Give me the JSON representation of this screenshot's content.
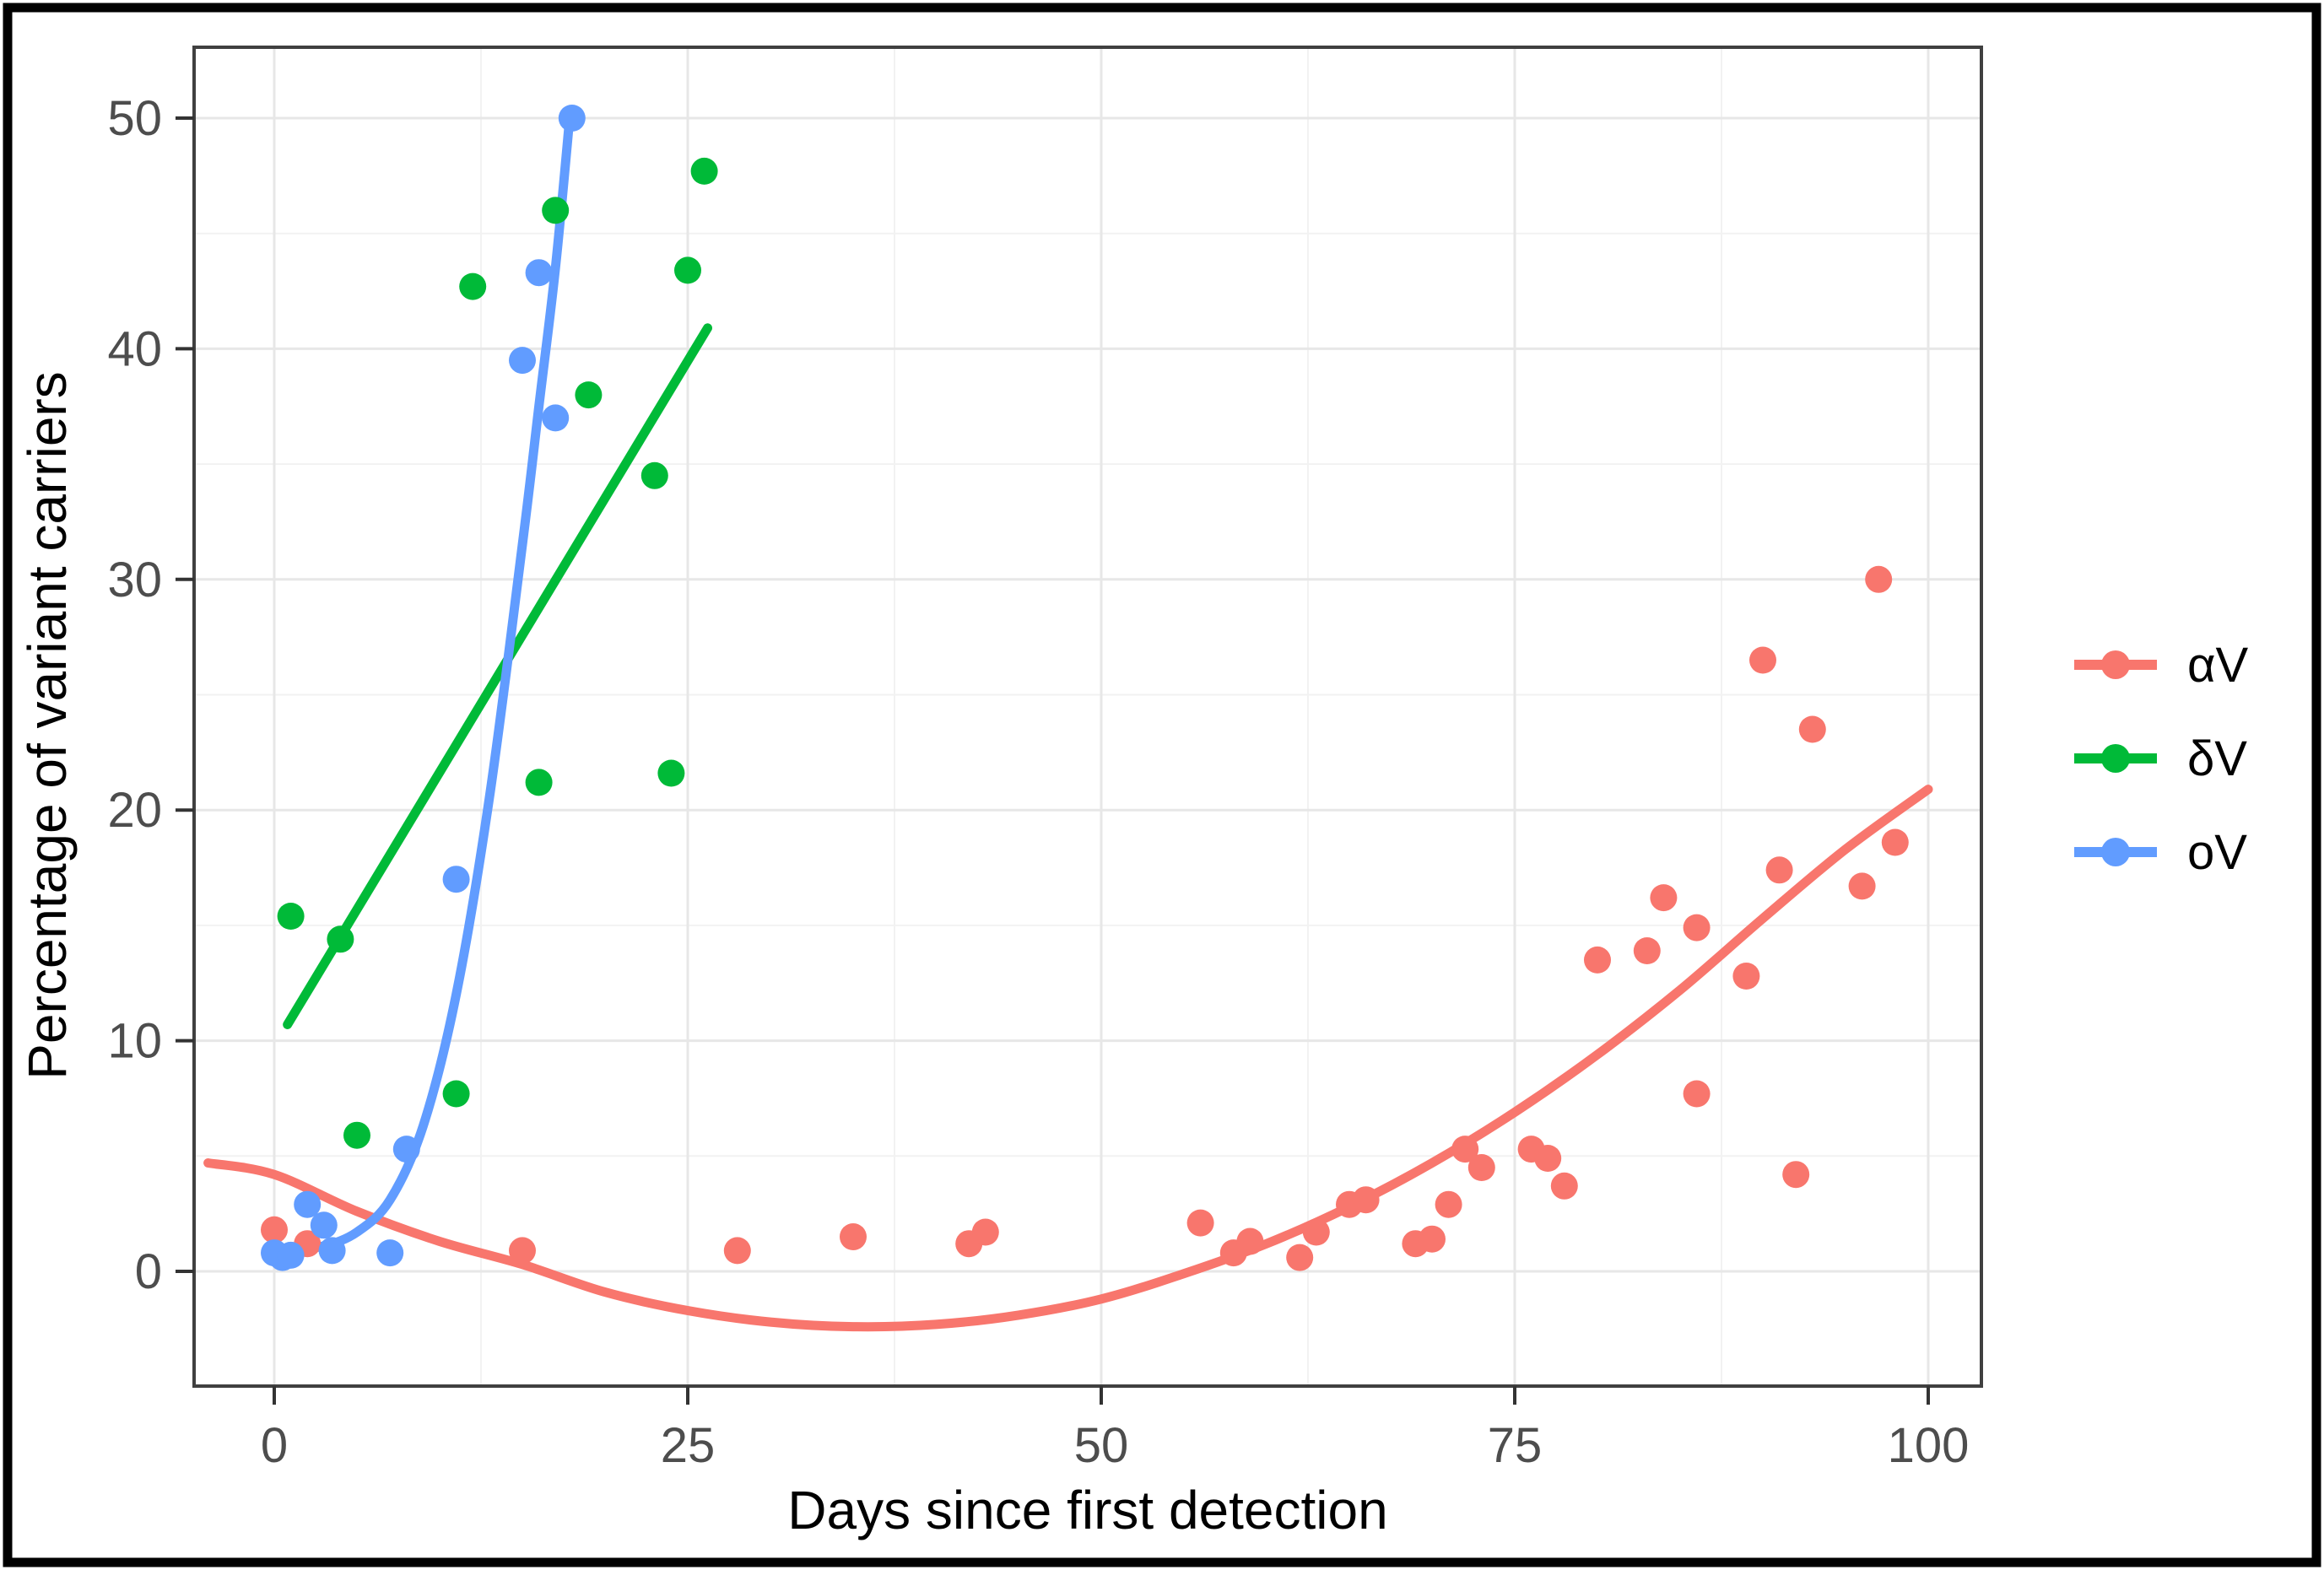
{
  "figure": {
    "description": "Scatter plot with fitted trend curves of variant carrier percentage over days since first detection",
    "background": "#ffffff",
    "frame_color": "#000000",
    "panel_border_color": "#404040",
    "grid_major_color": "#e7e7e7",
    "grid_minor_color": "#f2f2f2",
    "tick_color": "#333333",
    "tick_label_color": "#4d4d4d"
  },
  "legend": {
    "position": "right",
    "items": [
      {
        "label": "αV",
        "color": "#F8766D"
      },
      {
        "label": "δV",
        "color": "#00BA38"
      },
      {
        "label": "oV",
        "color": "#619CFF"
      }
    ]
  },
  "chart_data": {
    "type": "scatter",
    "title": "",
    "xlabel": "Days since first detection",
    "ylabel": "Percentage of variant carriers",
    "xlim": [
      -5,
      103
    ],
    "ylim": [
      -5,
      53
    ],
    "x_ticks": [
      0,
      25,
      50,
      75,
      100
    ],
    "x_minor": [
      12.5,
      37.5,
      62.5,
      87.5
    ],
    "y_ticks": [
      0,
      10,
      20,
      30,
      40,
      50
    ],
    "y_minor": [
      5,
      15,
      25,
      35,
      45
    ],
    "grid": true,
    "legend_position": "right",
    "series": [
      {
        "name": "αV",
        "id": "alphaV",
        "color": "#F8766D",
        "points": [
          [
            0,
            1.8
          ],
          [
            2,
            1.2
          ],
          [
            15,
            0.9
          ],
          [
            28,
            0.9
          ],
          [
            35,
            1.5
          ],
          [
            42,
            1.2
          ],
          [
            43,
            1.7
          ],
          [
            56,
            2.1
          ],
          [
            58,
            0.8
          ],
          [
            59,
            1.3
          ],
          [
            62,
            0.6
          ],
          [
            63,
            1.7
          ],
          [
            65,
            2.9
          ],
          [
            66,
            3.1
          ],
          [
            69,
            1.2
          ],
          [
            70,
            1.4
          ],
          [
            71,
            2.9
          ],
          [
            72,
            5.3
          ],
          [
            73,
            4.5
          ],
          [
            76,
            5.3
          ],
          [
            77,
            4.9
          ],
          [
            78,
            3.7
          ],
          [
            80,
            13.5
          ],
          [
            83,
            13.9
          ],
          [
            84,
            16.2
          ],
          [
            86,
            14.9
          ],
          [
            86,
            7.7
          ],
          [
            89,
            12.8
          ],
          [
            90,
            26.5
          ],
          [
            91,
            17.4
          ],
          [
            92,
            4.2
          ],
          [
            93,
            23.5
          ],
          [
            96,
            16.7
          ],
          [
            97,
            30.0
          ],
          [
            98,
            18.6
          ]
        ],
        "trend": [
          [
            -4,
            4.7
          ],
          [
            0,
            4.2
          ],
          [
            5,
            2.6
          ],
          [
            10,
            1.3
          ],
          [
            15,
            0.3
          ],
          [
            20,
            -0.9
          ],
          [
            25,
            -1.7
          ],
          [
            30,
            -2.2
          ],
          [
            35,
            -2.4
          ],
          [
            40,
            -2.3
          ],
          [
            45,
            -1.9
          ],
          [
            50,
            -1.2
          ],
          [
            55,
            -0.1
          ],
          [
            60,
            1.2
          ],
          [
            65,
            2.8
          ],
          [
            70,
            4.7
          ],
          [
            75,
            6.9
          ],
          [
            80,
            9.4
          ],
          [
            85,
            12.2
          ],
          [
            90,
            15.3
          ],
          [
            95,
            18.3
          ],
          [
            100,
            20.9
          ]
        ]
      },
      {
        "name": "δV",
        "id": "deltaV",
        "color": "#00BA38",
        "points": [
          [
            1,
            15.4
          ],
          [
            4,
            14.4
          ],
          [
            5,
            5.9
          ],
          [
            11,
            7.7
          ],
          [
            12,
            42.7
          ],
          [
            16,
            21.2
          ],
          [
            17,
            46.0
          ],
          [
            19,
            38.0
          ],
          [
            23,
            34.5
          ],
          [
            24,
            21.6
          ],
          [
            25,
            43.4
          ],
          [
            26,
            47.7
          ]
        ],
        "trend": [
          [
            0.8,
            10.7
          ],
          [
            26.2,
            40.9
          ]
        ]
      },
      {
        "name": "oV",
        "id": "omicronV",
        "color": "#619CFF",
        "points": [
          [
            0,
            0.8
          ],
          [
            0.5,
            0.6
          ],
          [
            1,
            0.7
          ],
          [
            2,
            2.9
          ],
          [
            3,
            2.0
          ],
          [
            3.5,
            0.9
          ],
          [
            7,
            0.8
          ],
          [
            8,
            5.3
          ],
          [
            11,
            17.0
          ],
          [
            15,
            39.5
          ],
          [
            16,
            43.3
          ],
          [
            17,
            37.0
          ],
          [
            18,
            50.0
          ]
        ],
        "trend": [
          [
            -0.5,
            0.9
          ],
          [
            1,
            0.95
          ],
          [
            3,
            1.1
          ],
          [
            5,
            1.7
          ],
          [
            7,
            3.1
          ],
          [
            9,
            6.3
          ],
          [
            11,
            12.0
          ],
          [
            13,
            20.5
          ],
          [
            15,
            31.5
          ],
          [
            16,
            37.5
          ],
          [
            17,
            43.5
          ],
          [
            17.9,
            50.3
          ]
        ]
      }
    ]
  }
}
